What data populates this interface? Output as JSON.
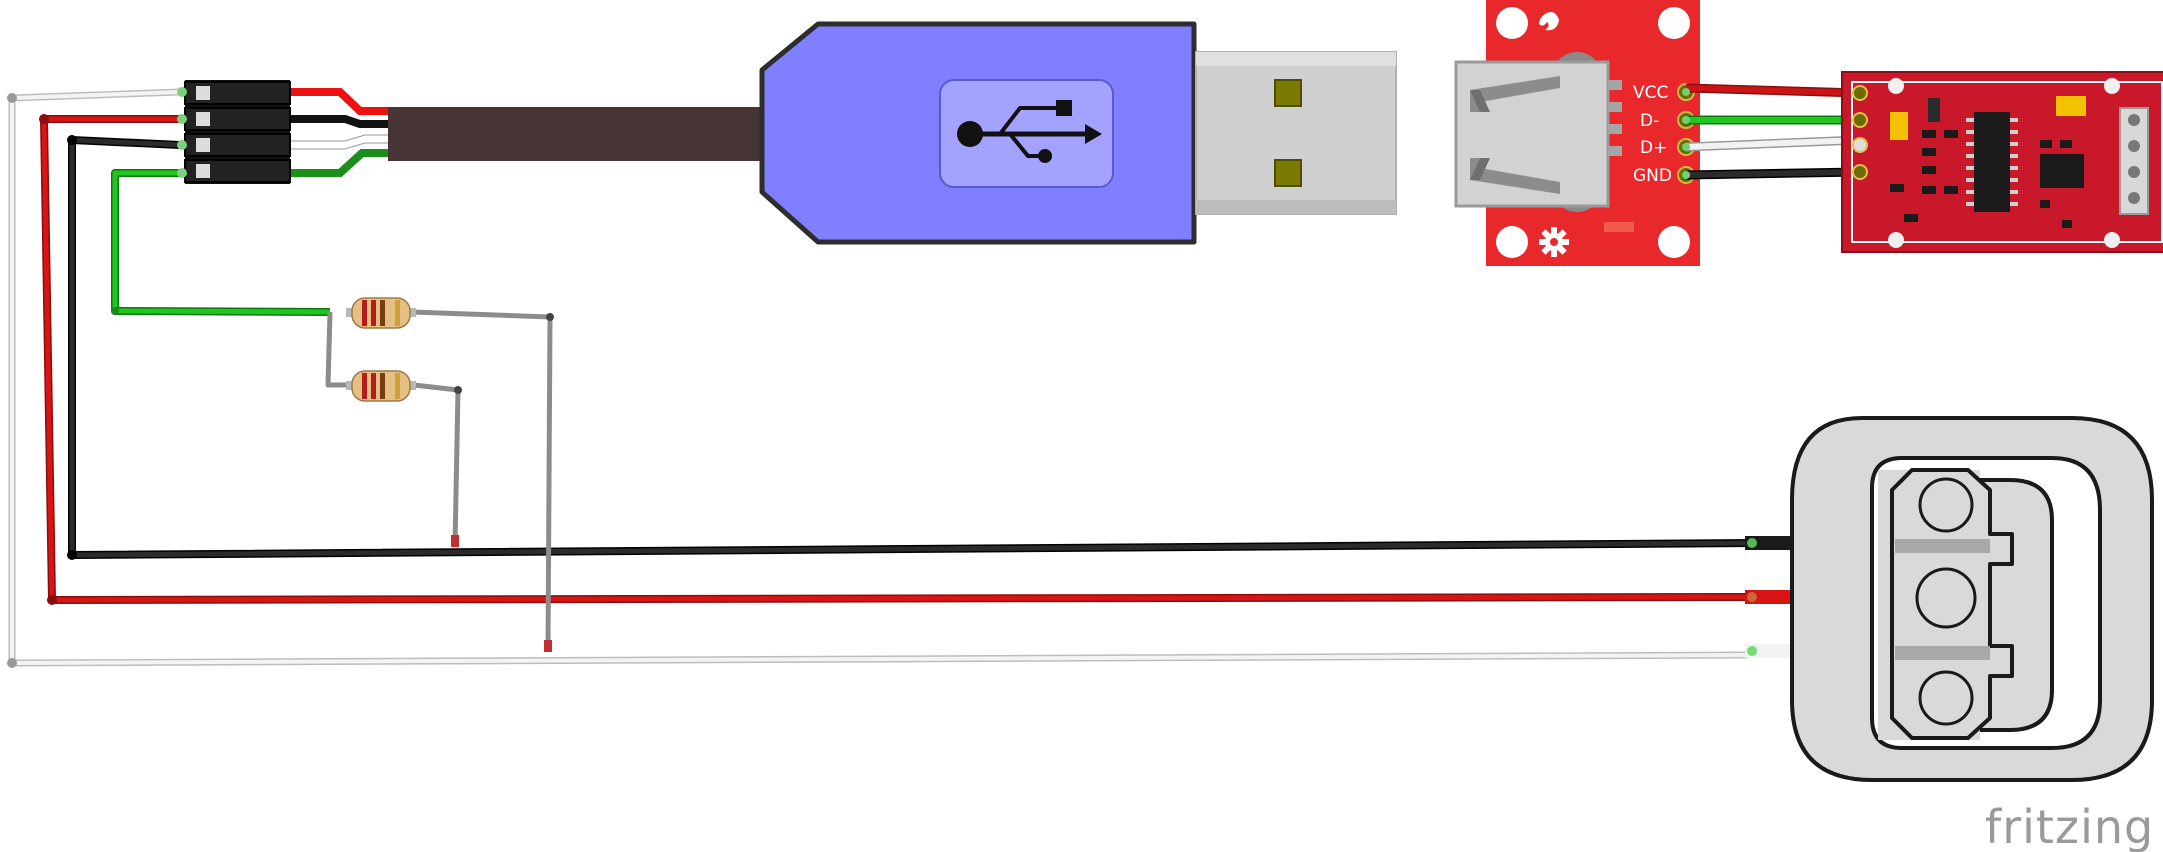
{
  "usb_breakout": {
    "pins": [
      "VCC",
      "D-",
      "D+",
      "GND"
    ]
  },
  "brand": {
    "name": "fritzing"
  },
  "colors": {
    "usb_body": "#7f7fff",
    "usb_badge": "#a3a3ff",
    "cable": "#463534",
    "breakout_board": "#e8282b",
    "hx711_board": "#c9182a",
    "wire_red": "#d01010",
    "wire_black": "#1a1a1a",
    "wire_green": "#1db81d",
    "wire_white": "#e6e6e6",
    "wire_gray": "#999999",
    "load_cell": "#d9d9d9"
  },
  "icons": {
    "usb_symbol": "usb-trident-icon",
    "breakout_logo": "sparkfun-flame-icon",
    "breakout_gear": "gear-icon"
  }
}
